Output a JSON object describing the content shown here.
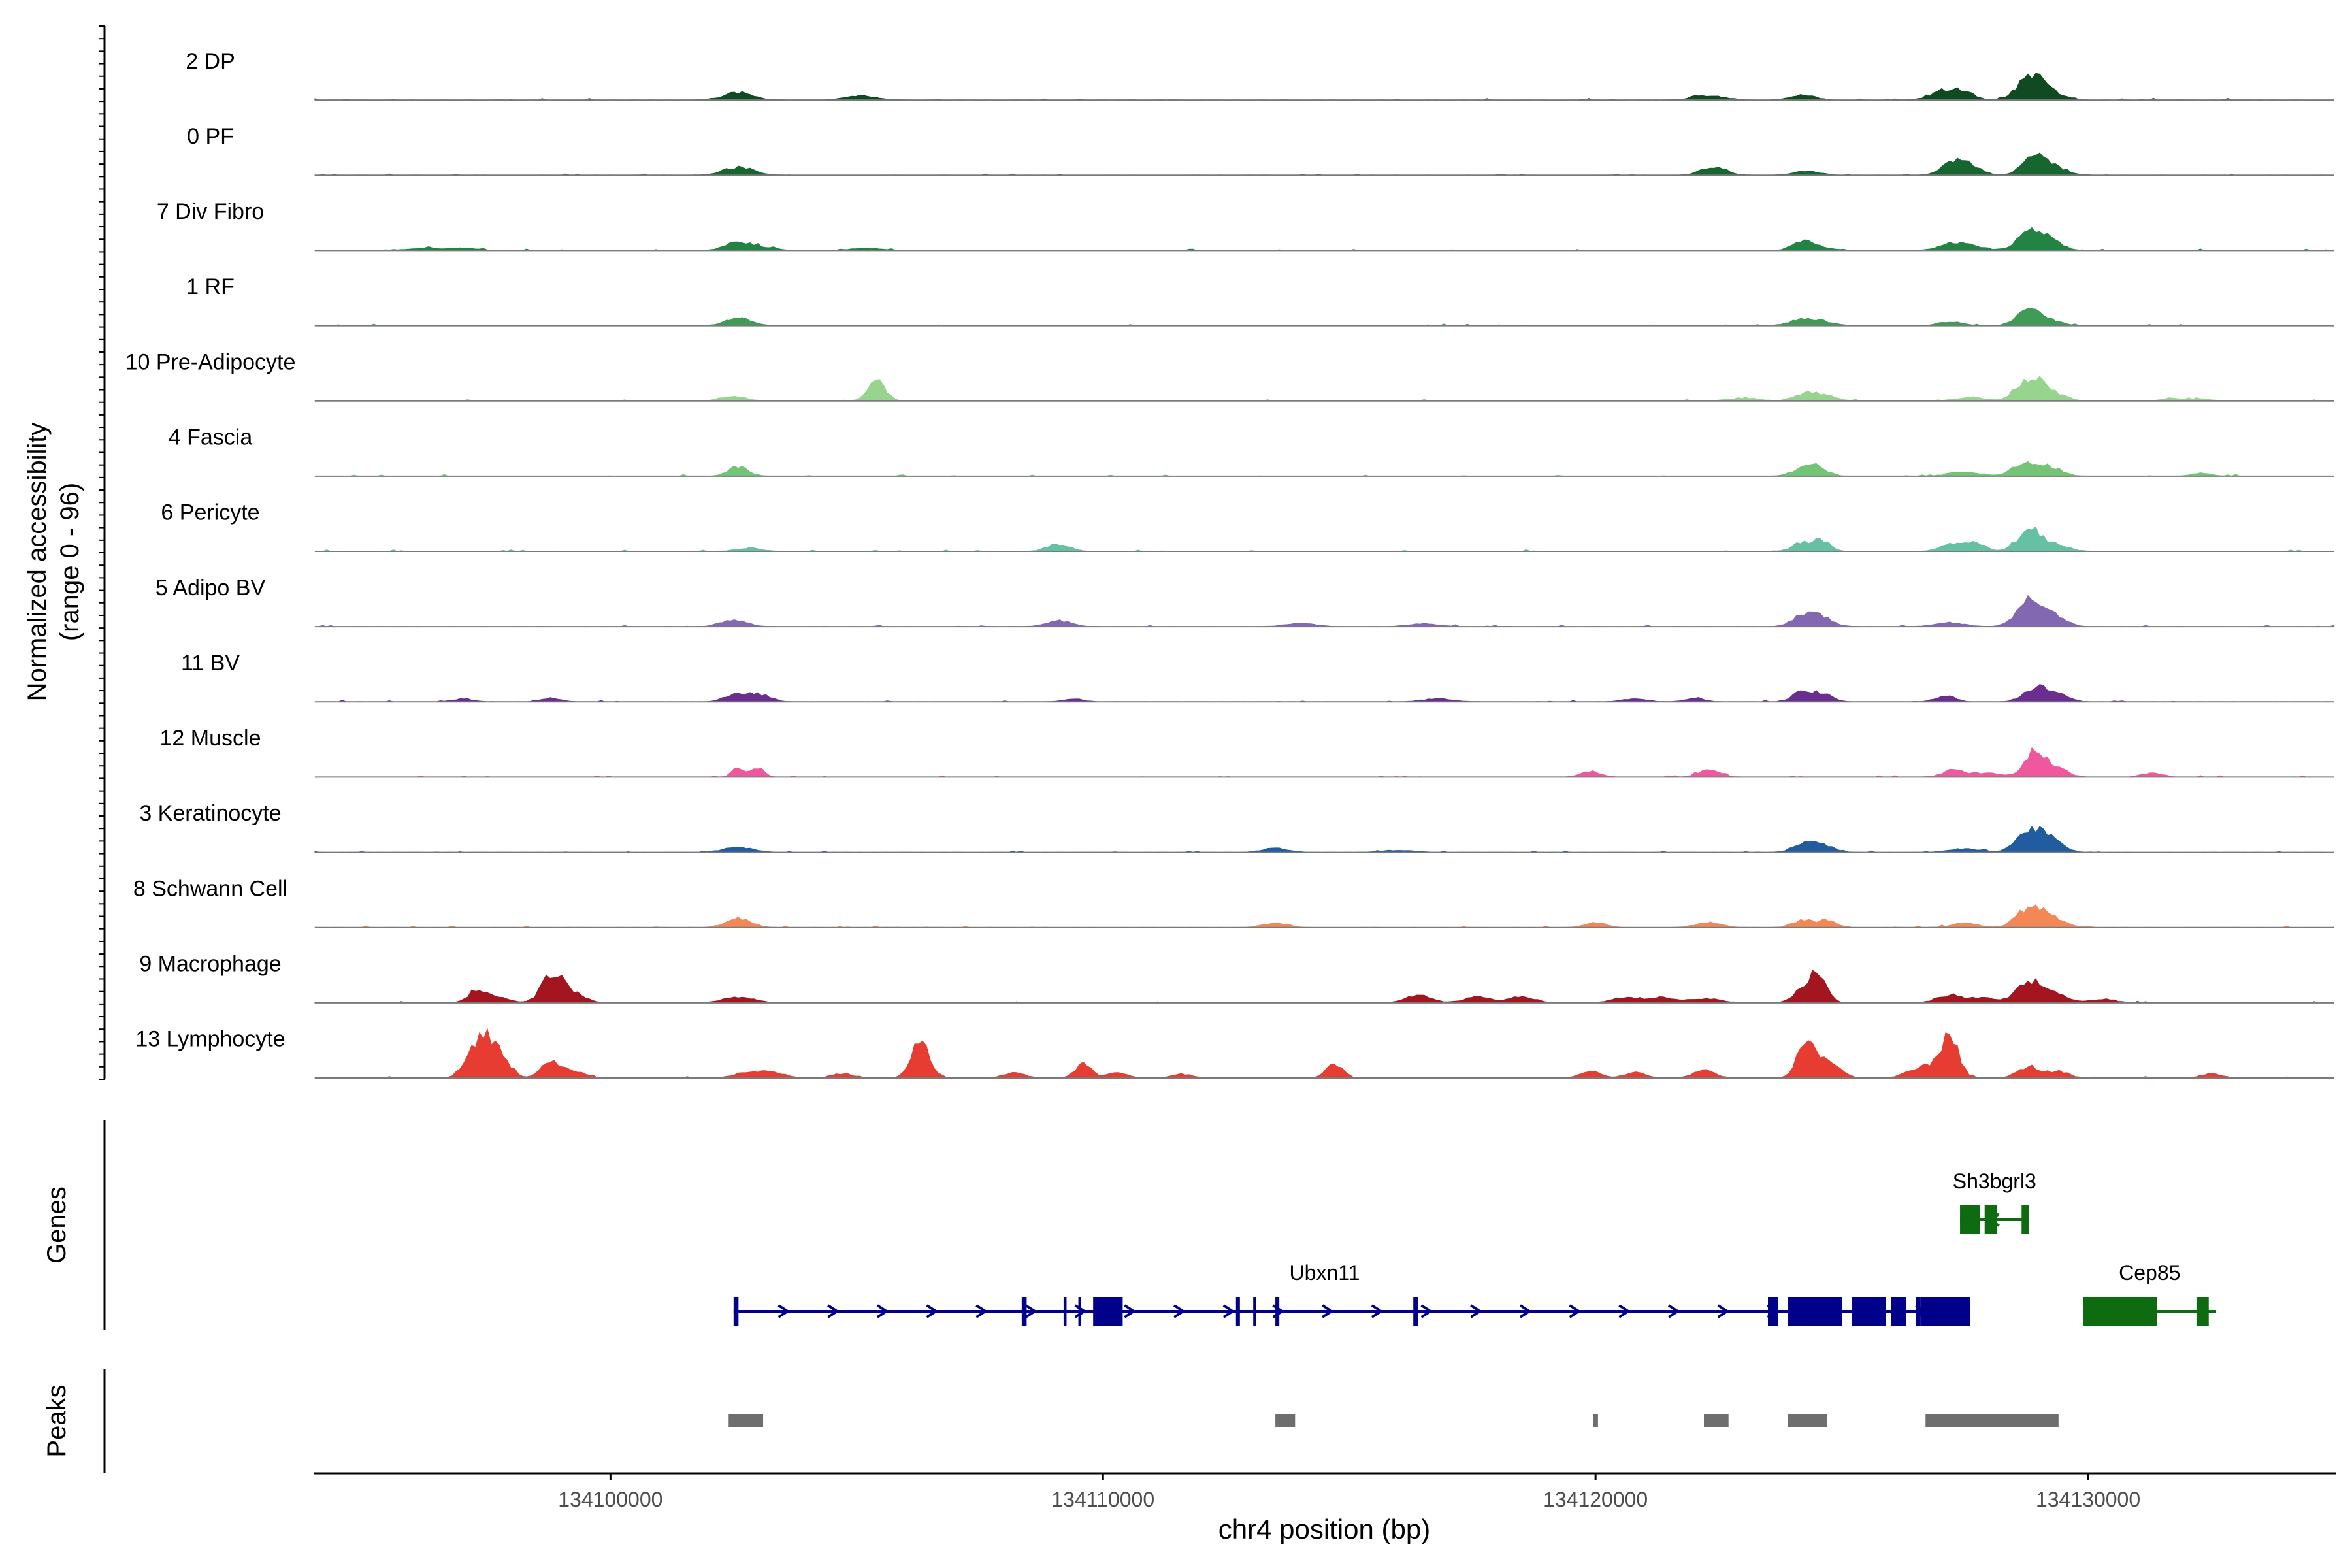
{
  "chart_data": {
    "type": "area",
    "title": "",
    "ylabel": "Normalized accessibility",
    "ylabel_range": "(range 0 - 96)",
    "xlabel": "chr4 position (bp)",
    "xlim": [
      134094000,
      134135000
    ],
    "ylim": [
      0,
      96
    ],
    "x_ticks": [
      {
        "value": 134100000,
        "label": "134100000"
      },
      {
        "value": 134110000,
        "label": "134110000"
      },
      {
        "value": 134120000,
        "label": "134120000"
      },
      {
        "value": 134130000,
        "label": "134130000"
      }
    ],
    "grid": false,
    "tracks": [
      {
        "name": "2 DP",
        "color": "#0f4a21",
        "peaks": [
          [
            134102600,
            10,
            300
          ],
          [
            134105100,
            6,
            300
          ],
          [
            134122300,
            6,
            300
          ],
          [
            134124200,
            7,
            250
          ],
          [
            134127100,
            12,
            280
          ],
          [
            134127500,
            9,
            200
          ],
          [
            134128800,
            26,
            250
          ],
          [
            134129100,
            14,
            300
          ]
        ]
      },
      {
        "name": "0 PF",
        "color": "#17662f",
        "peaks": [
          [
            134102600,
            11,
            300
          ],
          [
            134122400,
            12,
            250
          ],
          [
            134124300,
            6,
            250
          ],
          [
            134127300,
            20,
            250
          ],
          [
            134127700,
            8,
            200
          ],
          [
            134128900,
            24,
            230
          ],
          [
            134129200,
            12,
            300
          ]
        ]
      },
      {
        "name": "7 Div Fibro",
        "color": "#238343",
        "peaks": [
          [
            134096200,
            3,
            300
          ],
          [
            134097000,
            3,
            300
          ],
          [
            134102600,
            13,
            250
          ],
          [
            134103200,
            4,
            200
          ],
          [
            134105200,
            3,
            300
          ],
          [
            134124200,
            12,
            200
          ],
          [
            134124600,
            4,
            250
          ],
          [
            134127200,
            8,
            250
          ],
          [
            134127600,
            7,
            250
          ],
          [
            134128800,
            22,
            250
          ],
          [
            134129200,
            13,
            250
          ]
        ]
      },
      {
        "name": "1 RF",
        "color": "#3f9b55",
        "peaks": [
          [
            134102600,
            11,
            250
          ],
          [
            134124200,
            8,
            250
          ],
          [
            134124600,
            5,
            250
          ],
          [
            134127200,
            5,
            250
          ],
          [
            134128800,
            22,
            230
          ],
          [
            134129200,
            7,
            250
          ]
        ]
      },
      {
        "name": "10 Pre-Adipocyte",
        "color": "#97d58f",
        "peaks": [
          [
            134102500,
            7,
            250
          ],
          [
            134105400,
            30,
            170
          ],
          [
            134123000,
            4,
            300
          ],
          [
            134124300,
            10,
            250
          ],
          [
            134124700,
            5,
            250
          ],
          [
            134127600,
            5,
            300
          ],
          [
            134128800,
            28,
            250
          ],
          [
            134129200,
            12,
            300
          ],
          [
            134131700,
            4,
            200
          ],
          [
            134132300,
            3,
            200
          ]
        ]
      },
      {
        "name": "4 Fascia",
        "color": "#74c477",
        "peaks": [
          [
            134102600,
            13,
            200
          ],
          [
            134124200,
            8,
            230
          ],
          [
            134124500,
            12,
            200
          ],
          [
            134127500,
            6,
            300
          ],
          [
            134128700,
            18,
            230
          ],
          [
            134129200,
            13,
            250
          ],
          [
            134132300,
            4,
            200
          ]
        ]
      },
      {
        "name": "6 Pericyte",
        "color": "#66c1a4",
        "peaks": [
          [
            134102800,
            4,
            250
          ],
          [
            134109100,
            10,
            220
          ],
          [
            134124200,
            11,
            200
          ],
          [
            134124600,
            14,
            170
          ],
          [
            134127200,
            10,
            220
          ],
          [
            134127700,
            12,
            200
          ],
          [
            134128800,
            28,
            230
          ],
          [
            134129300,
            9,
            280
          ]
        ]
      },
      {
        "name": "5 Adipo BV",
        "color": "#8168b0",
        "peaks": [
          [
            134102500,
            10,
            250
          ],
          [
            134109100,
            8,
            250
          ],
          [
            134114000,
            4,
            300
          ],
          [
            134116500,
            4,
            300
          ],
          [
            134124200,
            15,
            220
          ],
          [
            134124600,
            12,
            220
          ],
          [
            134127200,
            5,
            300
          ],
          [
            134128800,
            36,
            250
          ],
          [
            134129300,
            14,
            250
          ]
        ]
      },
      {
        "name": "11 BV",
        "color": "#6a2e8e",
        "peaks": [
          [
            134097000,
            4,
            200
          ],
          [
            134098800,
            5,
            200
          ],
          [
            134102600,
            12,
            250
          ],
          [
            134103100,
            8,
            200
          ],
          [
            134109400,
            4,
            200
          ],
          [
            134116800,
            4,
            300
          ],
          [
            134120800,
            4,
            250
          ],
          [
            134122000,
            5,
            200
          ],
          [
            134124200,
            13,
            200
          ],
          [
            134124600,
            11,
            200
          ],
          [
            134127100,
            8,
            200
          ],
          [
            134128900,
            17,
            230
          ],
          [
            134129300,
            12,
            250
          ]
        ]
      },
      {
        "name": "12 Muscle",
        "color": "#f0589d",
        "peaks": [
          [
            134102600,
            14,
            120
          ],
          [
            134103000,
            14,
            120
          ],
          [
            134119900,
            8,
            200
          ],
          [
            134122300,
            10,
            220
          ],
          [
            134127300,
            9,
            250
          ],
          [
            134128000,
            6,
            250
          ],
          [
            134128900,
            34,
            200
          ],
          [
            134129300,
            13,
            250
          ],
          [
            134131300,
            6,
            200
          ]
        ]
      },
      {
        "name": "3 Keratinocyte",
        "color": "#215ba0",
        "peaks": [
          [
            134102600,
            7,
            300
          ],
          [
            134113500,
            6,
            250
          ],
          [
            134116000,
            3,
            300
          ],
          [
            134124200,
            10,
            220
          ],
          [
            134124600,
            10,
            220
          ],
          [
            134127500,
            5,
            300
          ],
          [
            134128800,
            24,
            270
          ],
          [
            134129200,
            18,
            250
          ]
        ]
      },
      {
        "name": "8 Schwann Cell",
        "color": "#f38755",
        "peaks": [
          [
            134102600,
            13,
            250
          ],
          [
            134113500,
            6,
            250
          ],
          [
            134120000,
            7,
            200
          ],
          [
            134122300,
            7,
            250
          ],
          [
            134124200,
            10,
            200
          ],
          [
            134124700,
            9,
            180
          ],
          [
            134127500,
            6,
            250
          ],
          [
            134128800,
            24,
            250
          ],
          [
            134129200,
            13,
            300
          ]
        ]
      },
      {
        "name": "9 Macrophage",
        "color": "#a31620",
        "peaks": [
          [
            134097300,
            15,
            200
          ],
          [
            134097700,
            7,
            250
          ],
          [
            134098800,
            38,
            200
          ],
          [
            134099200,
            14,
            250
          ],
          [
            134102600,
            8,
            300
          ],
          [
            134116400,
            10,
            250
          ],
          [
            134117600,
            9,
            250
          ],
          [
            134118500,
            8,
            250
          ],
          [
            134120600,
            8,
            250
          ],
          [
            134121300,
            7,
            250
          ],
          [
            134122200,
            6,
            300
          ],
          [
            134124500,
            36,
            180
          ],
          [
            134124200,
            14,
            200
          ],
          [
            134127200,
            11,
            250
          ],
          [
            134127900,
            7,
            250
          ],
          [
            134128800,
            28,
            250
          ],
          [
            134129300,
            12,
            250
          ],
          [
            134130300,
            5,
            250
          ]
        ]
      },
      {
        "name": "13 Lymphocyte",
        "color": "#e73c31",
        "peaks": [
          [
            134097400,
            55,
            250
          ],
          [
            134097800,
            20,
            200
          ],
          [
            134098800,
            22,
            200
          ],
          [
            134099300,
            8,
            200
          ],
          [
            134102800,
            8,
            250
          ],
          [
            134103300,
            7,
            250
          ],
          [
            134104700,
            6,
            200
          ],
          [
            134106300,
            52,
            180
          ],
          [
            134108200,
            8,
            200
          ],
          [
            134109600,
            20,
            160
          ],
          [
            134110300,
            7,
            200
          ],
          [
            134111600,
            5,
            200
          ],
          [
            134114700,
            20,
            160
          ],
          [
            134119900,
            9,
            200
          ],
          [
            134120800,
            8,
            200
          ],
          [
            134122200,
            10,
            220
          ],
          [
            134124300,
            60,
            180
          ],
          [
            134124800,
            20,
            200
          ],
          [
            134126400,
            8,
            200
          ],
          [
            134127200,
            58,
            170
          ],
          [
            134126800,
            14,
            220
          ],
          [
            134128800,
            16,
            220
          ],
          [
            134129400,
            9,
            200
          ],
          [
            134132500,
            6,
            200
          ]
        ]
      }
    ],
    "genes": [
      {
        "name": "Sh3bgrl3",
        "strand": "-",
        "color": "#0e6b10",
        "start": 134127400,
        "end": 134128800,
        "exons": [
          [
            134127400,
            134127800
          ],
          [
            134127900,
            134128150
          ],
          [
            134128650,
            134128800
          ]
        ]
      },
      {
        "name": "Ubxn11",
        "strand": "+",
        "color": "#00008b",
        "start": 134102500,
        "end": 134127600,
        "exons": [
          [
            134102500,
            134102600
          ],
          [
            134108350,
            134108450
          ],
          [
            134109200,
            134109260
          ],
          [
            134109500,
            134109530
          ],
          [
            134109800,
            134110400
          ],
          [
            134112700,
            134112780
          ],
          [
            134113050,
            134113110
          ],
          [
            134113500,
            134113580
          ],
          [
            134116300,
            134116400
          ],
          [
            134123500,
            134123700
          ],
          [
            134123900,
            134125000
          ],
          [
            134125200,
            134125900
          ],
          [
            134126000,
            134126300
          ],
          [
            134126500,
            134126600
          ],
          [
            134126600,
            134127600
          ]
        ]
      },
      {
        "name": "Cep85",
        "strand": "-",
        "color": "#0e6b10",
        "start": 134129900,
        "end": 134132600,
        "exons": [
          [
            134129900,
            134131400
          ],
          [
            134132200,
            134132450
          ]
        ]
      }
    ],
    "peak_regions": [
      [
        134102400,
        134103100
      ],
      [
        134113500,
        134113900
      ],
      [
        134119950,
        134120050
      ],
      [
        134122200,
        134122700
      ],
      [
        134123900,
        134124700
      ],
      [
        134126700,
        134129400
      ]
    ]
  },
  "ui": {
    "genes_label": "Genes",
    "peaks_label": "Peaks"
  }
}
